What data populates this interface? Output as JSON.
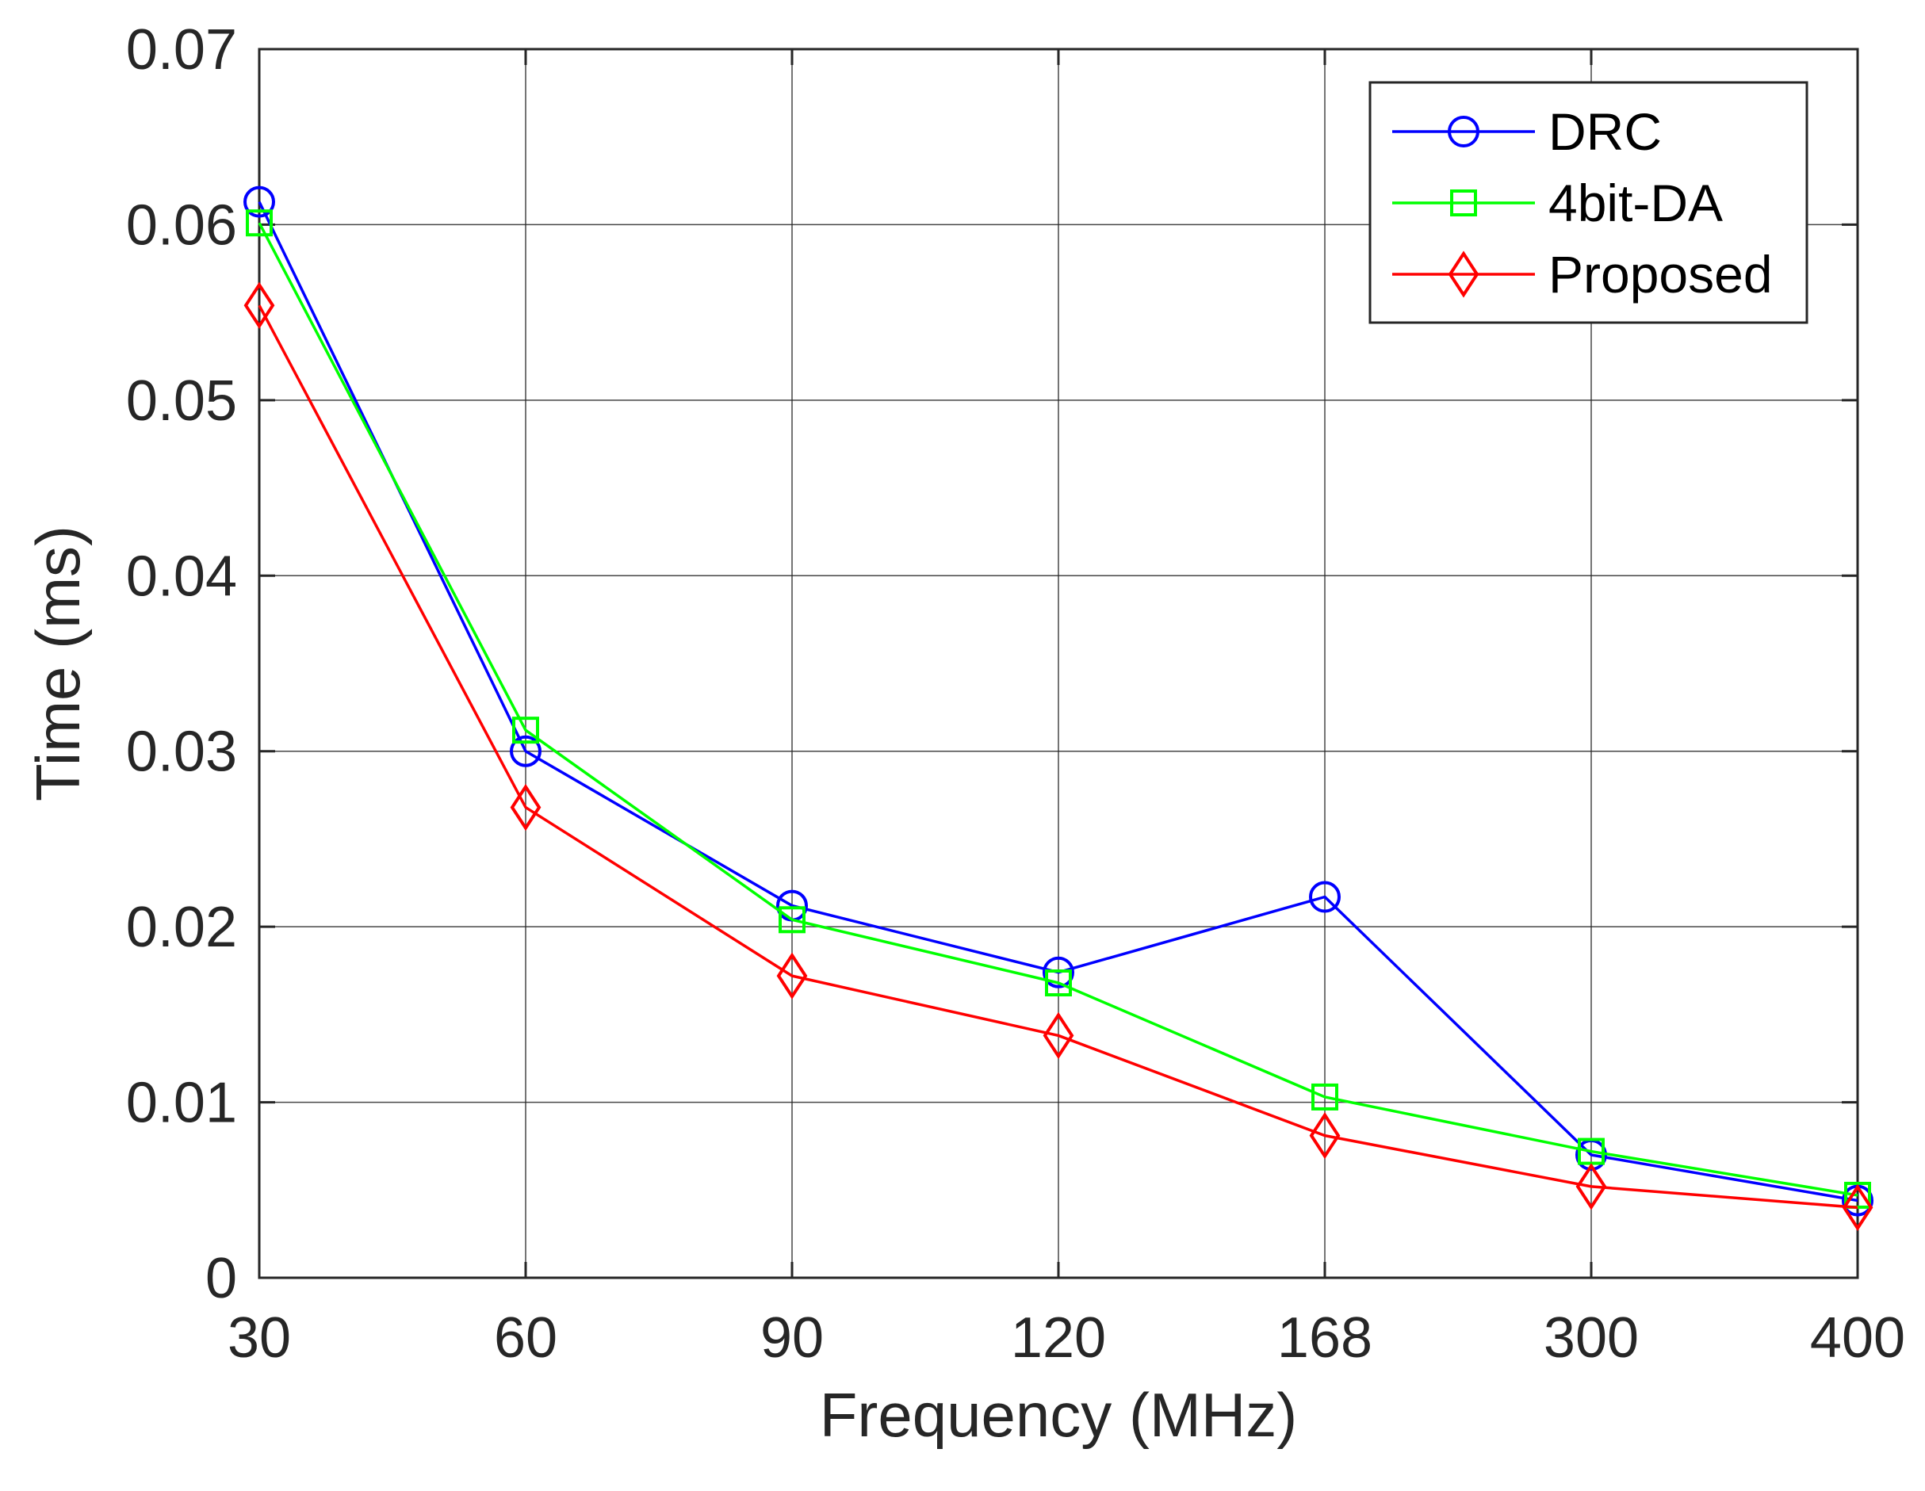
{
  "chart_data": {
    "type": "line",
    "title": "",
    "xlabel": "Frequency (MHz)",
    "ylabel": "Time (ms)",
    "categories": [
      "30",
      "60",
      "90",
      "120",
      "168",
      "300",
      "400"
    ],
    "ylim": [
      0,
      0.07
    ],
    "yticks": [
      "0",
      "0.01",
      "0.02",
      "0.03",
      "0.04",
      "0.05",
      "0.06",
      "0.07"
    ],
    "grid": true,
    "legend_position": "top-right",
    "series": [
      {
        "name": "DRC",
        "color": "#0000ff",
        "marker": "circle",
        "values": [
          0.0613,
          0.03,
          0.0212,
          0.0174,
          0.0217,
          0.007,
          0.0044
        ]
      },
      {
        "name": "4bit-DA",
        "color": "#00ff00",
        "marker": "square",
        "values": [
          0.0601,
          0.0312,
          0.0204,
          0.0168,
          0.0103,
          0.0072,
          0.0047
        ]
      },
      {
        "name": "Proposed",
        "color": "#ff0000",
        "marker": "diamond",
        "values": [
          0.0554,
          0.0268,
          0.0172,
          0.0138,
          0.0081,
          0.0052,
          0.004
        ]
      }
    ]
  }
}
